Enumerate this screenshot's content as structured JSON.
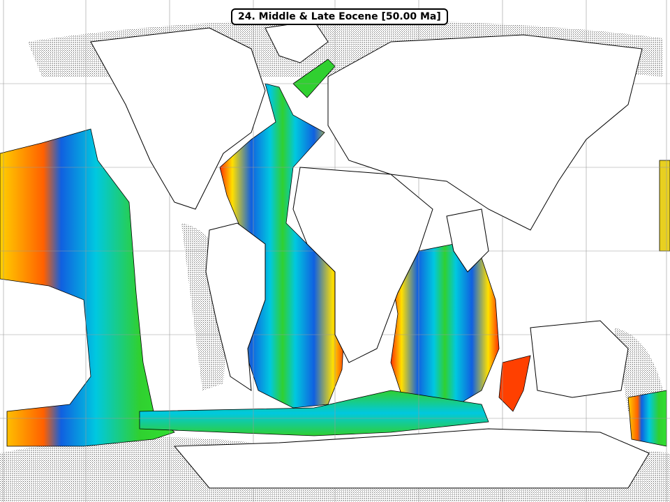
{
  "map": {
    "title": "24. Middle & Late Eocene [50.00 Ma]",
    "projection": "rectangular",
    "grid": true,
    "colors": {
      "land": "#ffffff",
      "shelf_hatch": "#777777",
      "coastline": "#000000",
      "young_crust": "#ff2000",
      "mid_crust_1": "#ffd000",
      "mid_crust_2": "#30d030",
      "mid_crust_3": "#00c8e0",
      "old_crust": "#1060e0"
    }
  }
}
